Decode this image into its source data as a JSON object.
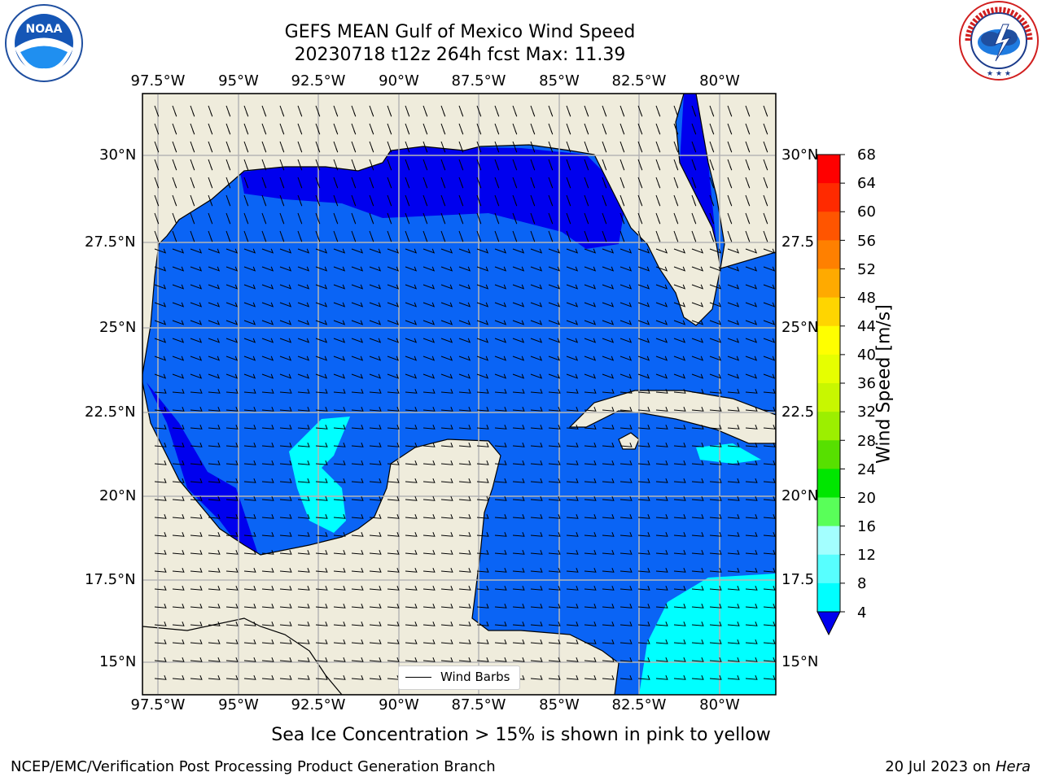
{
  "title": {
    "line1": "GEFS MEAN Gulf of Mexico Wind Speed",
    "line2": "20230718 t12z 264h fcst   Max: 11.39"
  },
  "map": {
    "lon_ticks": [
      "97.5°W",
      "95°W",
      "92.5°W",
      "90°W",
      "87.5°W",
      "85°W",
      "82.5°W",
      "80°W"
    ],
    "lat_ticks_left": [
      "30°N",
      "27.5°N",
      "25°N",
      "22.5°N",
      "20°N",
      "17.5°N",
      "15°N"
    ],
    "lat_ticks_right": [
      "30°N",
      "27.5",
      "25°N",
      "22.5",
      "20°N",
      "17.5",
      "15°N"
    ],
    "land_color": "#efecdc",
    "ocean_low_color": "#0a64f5",
    "ocean_calm_color": "#0000ee",
    "ocean_high_color": "#00ffff",
    "legend_label": "Wind Barbs"
  },
  "colorbar": {
    "label": "Wind Speed [m/s]",
    "ticks": [
      "68",
      "64",
      "60",
      "56",
      "52",
      "48",
      "44",
      "40",
      "36",
      "32",
      "28",
      "24",
      "20",
      "16",
      "12",
      "8",
      "4"
    ],
    "colors": [
      "#ff0000",
      "#ff2a00",
      "#ff5500",
      "#ff8000",
      "#ffaa00",
      "#ffd500",
      "#ffff00",
      "#e6ff00",
      "#c8f700",
      "#9cef00",
      "#57e000",
      "#00e600",
      "#59ff59",
      "#a3ffff",
      "#57ffff",
      "#00ffff",
      "#0a6cf5"
    ],
    "under_color": "#0000ee"
  },
  "captions": {
    "sea_ice": "Sea Ice Concentration > 15% is shown in pink to yellow",
    "footer_left": "NCEP/EMC/Verification Post Processing Product Generation Branch",
    "footer_right_prefix": "20 Jul 2023 on ",
    "footer_right_host": "Hera"
  },
  "logos": {
    "noaa_text": "NOAA",
    "nws_text": "NATIONAL WEATHER SERVICE"
  }
}
